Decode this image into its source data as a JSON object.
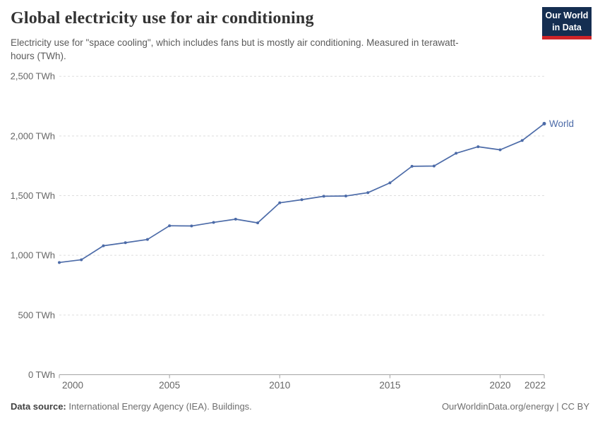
{
  "header": {
    "title": "Global electricity use for air conditioning",
    "subtitle": "Electricity use for \"space cooling\", which includes fans but is mostly air conditioning. Measured in terawatt-hours (TWh)."
  },
  "logo": {
    "line1": "Our World",
    "line2": "in Data"
  },
  "footer": {
    "datasource_label": "Data source:",
    "datasource_text": " International Energy Agency (IEA). Buildings.",
    "credit": "OurWorldinData.org/energy | CC BY"
  },
  "colors": {
    "line": "#4c6ba8",
    "series_label": "#4c6ba8",
    "grid": "#dddddd",
    "axis": "#a3a3a3",
    "tick_text": "#666666",
    "logo_bg": "#152e51",
    "logo_stripe": "#cf2428"
  },
  "chart_data": {
    "type": "line",
    "title": "Global electricity use for air conditioning",
    "xlabel": "",
    "ylabel": "TWh",
    "x": [
      2000,
      2001,
      2002,
      2003,
      2004,
      2005,
      2006,
      2007,
      2008,
      2009,
      2010,
      2011,
      2012,
      2013,
      2014,
      2015,
      2016,
      2017,
      2018,
      2019,
      2020,
      2021,
      2022
    ],
    "series": [
      {
        "name": "World",
        "values": [
          940,
          963,
          1080,
          1106,
          1133,
          1248,
          1246,
          1276,
          1303,
          1272,
          1440,
          1466,
          1495,
          1497,
          1525,
          1607,
          1746,
          1748,
          1855,
          1910,
          1884,
          1962,
          2103
        ]
      }
    ],
    "xlim": [
      2000,
      2022
    ],
    "ylim": [
      0,
      2500
    ],
    "xticks": [
      2000,
      2005,
      2010,
      2015,
      2020,
      2022
    ],
    "xtick_labels": [
      "2000",
      "2005",
      "2010",
      "2015",
      "2020",
      "2022"
    ],
    "yticks": [
      0,
      500,
      1000,
      1500,
      2000,
      2500
    ],
    "ytick_labels": [
      "0 TWh",
      "500 TWh",
      "1,000 TWh",
      "1,500 TWh",
      "2,000 TWh",
      "2,500 TWh"
    ],
    "grid": "horizontal-dashed",
    "legend": "end-of-line-label"
  }
}
